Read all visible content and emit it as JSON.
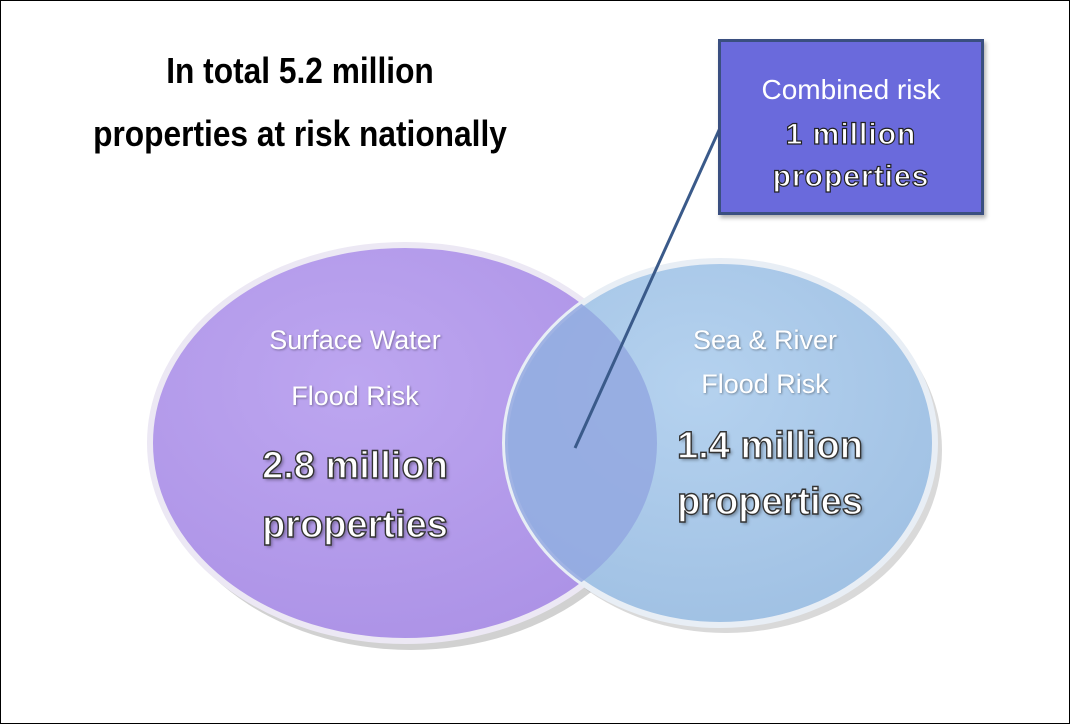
{
  "title": {
    "line1": "In total 5.2 million",
    "line2": "properties at risk nationally"
  },
  "surface_water": {
    "label_line1": "Surface Water",
    "label_line2": "Flood Risk",
    "value_line1": "2.8 million",
    "value_line2": "properties"
  },
  "sea_river": {
    "label_line1": "Sea & River",
    "label_line2": "Flood Risk",
    "value_line1": "1.4 million",
    "value_line2": "properties"
  },
  "combined": {
    "label": "Combined risk",
    "value_line1": "1 million",
    "value_line2": "properties"
  },
  "colors": {
    "surface_water_fill": "#b69cec",
    "sea_river_fill": "#a9c8e8",
    "overlap_fill": "#93a8e0",
    "combined_box_fill": "#6a6adc",
    "leader_line": "#3a5a8a"
  }
}
